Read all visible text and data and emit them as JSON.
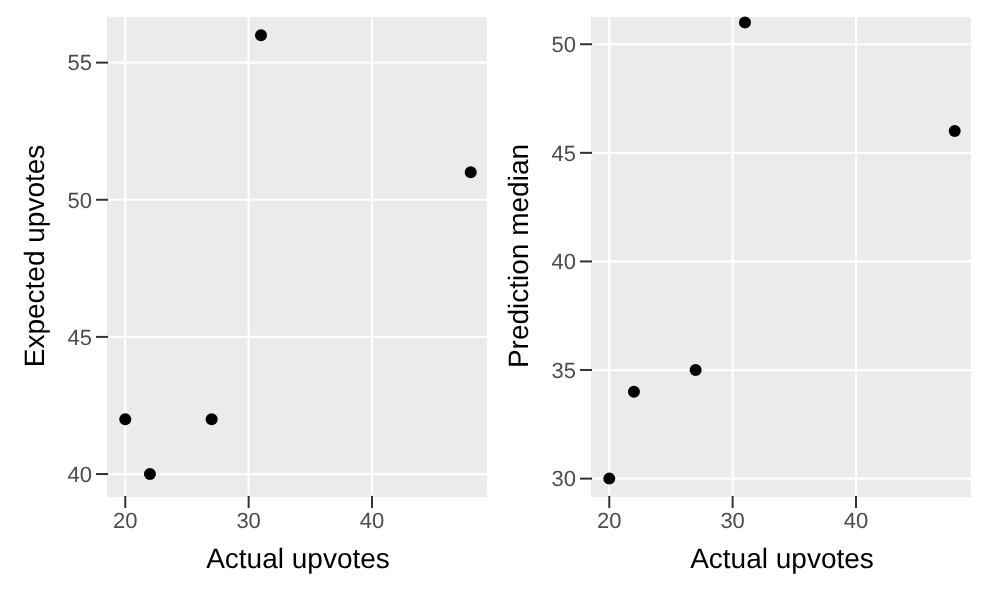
{
  "chart_data": [
    {
      "type": "scatter",
      "xlabel": "Actual upvotes",
      "ylabel": "Expected upvotes",
      "x": [
        20,
        22,
        27,
        31,
        48
      ],
      "values": [
        42,
        40,
        42,
        56,
        51
      ],
      "color": "#000000",
      "marker": "circle",
      "xlim": [
        18.6,
        49.4
      ],
      "xticks": [
        20,
        30,
        40
      ],
      "ylim": [
        39.2,
        56.7
      ],
      "yticks": [
        40,
        45,
        50,
        55
      ],
      "grid": true
    },
    {
      "type": "scatter",
      "xlabel": "Actual upvotes",
      "ylabel": "Prediction median",
      "x": [
        20,
        22,
        27,
        31,
        48
      ],
      "values": [
        30,
        34,
        35,
        51,
        46
      ],
      "color": "#000000",
      "marker": "circle",
      "xlim": [
        18.6,
        49.4
      ],
      "xticks": [
        20,
        30,
        40
      ],
      "ylim": [
        29.2,
        51.3
      ],
      "yticks": [
        30,
        35,
        40,
        45,
        50
      ],
      "grid": true
    }
  ]
}
